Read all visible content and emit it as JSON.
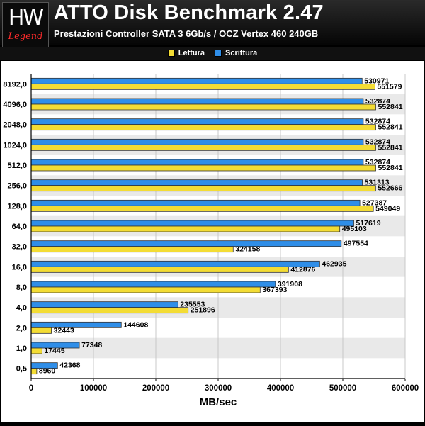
{
  "header": {
    "logo_text": "HW",
    "logo_subtext": "Legend",
    "title": "ATTO Disk Benchmark 2.47",
    "subtitle": "Prestazioni Controller SATA 3 6Gb/s / OCZ Vertex 460 240GB"
  },
  "colors": {
    "read": "#f3dc34",
    "write": "#2f8ee8",
    "background": "#000000",
    "stripe": "#e9e9e9"
  },
  "chart_data": {
    "type": "bar",
    "orientation": "horizontal",
    "title": "ATTO Disk Benchmark 2.47",
    "subtitle": "Prestazioni Controller SATA 3 6Gb/s / OCZ Vertex 460 240GB",
    "xlabel": "MB/sec",
    "ylabel": "",
    "xlim": [
      0,
      600000
    ],
    "xticks": [
      "0",
      "100000",
      "200000",
      "300000",
      "400000",
      "500000",
      "600000"
    ],
    "xtick_values": [
      0,
      100000,
      200000,
      300000,
      400000,
      500000,
      600000
    ],
    "legend_placement": "top-center",
    "grid": true,
    "categories": [
      "8192,0",
      "4096,0",
      "2048,0",
      "1024,0",
      "512,0",
      "256,0",
      "128,0",
      "64,0",
      "32,0",
      "16,0",
      "8,0",
      "4,0",
      "2,0",
      "1,0",
      "0,5"
    ],
    "series": [
      {
        "name": "Lettura",
        "values": [
          551579,
          552841,
          552841,
          552841,
          552841,
          552666,
          549049,
          495103,
          324158,
          412876,
          367393,
          251896,
          32443,
          17445,
          8960
        ]
      },
      {
        "name": "Scrittura",
        "values": [
          530971,
          532874,
          532874,
          532874,
          532874,
          531313,
          527387,
          517619,
          497554,
          462935,
          391908,
          235553,
          144608,
          77348,
          42368
        ]
      }
    ]
  }
}
